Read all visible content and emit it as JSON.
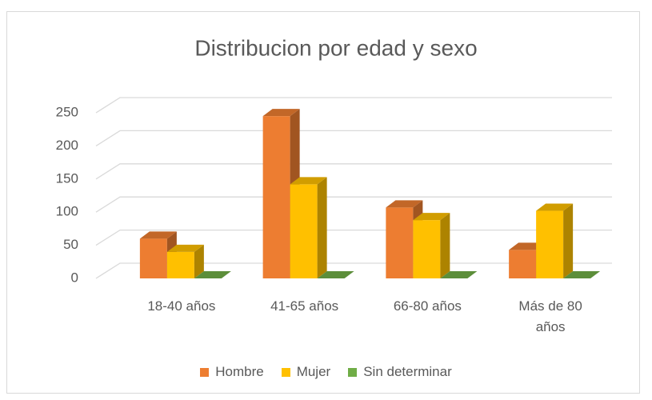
{
  "chart_data": {
    "type": "bar3d",
    "title": "Distribucion por edad y sexo",
    "categories": [
      "18-40 años",
      "41-65 años",
      "66-80 años",
      "Más de 80 años"
    ],
    "series": [
      {
        "name": "Hombre",
        "color": "#ED7D31",
        "values": [
          60,
          245,
          107,
          43
        ]
      },
      {
        "name": "Mujer",
        "color": "#FFC000",
        "values": [
          40,
          142,
          88,
          102
        ]
      },
      {
        "name": "Sin determinar",
        "color": "#70AD47",
        "values": [
          0,
          0,
          0,
          0
        ]
      }
    ],
    "ylim": [
      0,
      250
    ],
    "yticks": [
      0,
      50,
      100,
      150,
      200,
      250
    ],
    "grid": true,
    "legend": "bottom"
  }
}
